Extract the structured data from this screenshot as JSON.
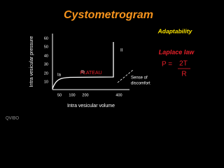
{
  "title": "Cystometrogram",
  "graph": {
    "y_axis_label": "Intra vesicular pressure",
    "x_axis_label": "Intra vesicular volume",
    "y_tick_labels": [
      "60",
      "50",
      "40",
      "30",
      "20",
      "10"
    ],
    "x_tick_labels": [
      "50",
      "100",
      "200",
      "400"
    ],
    "phase_labels": [
      "Ia",
      "Ib",
      "II"
    ],
    "plateau": "PLATEAU",
    "sense_note": [
      "Sense of",
      "discomfort"
    ]
  },
  "side": {
    "adaptability": "Adaptability",
    "law": "Laplace law",
    "formula_left": "P =",
    "numerator": "2T",
    "denominator": "R"
  },
  "logo": "QVIBO"
}
